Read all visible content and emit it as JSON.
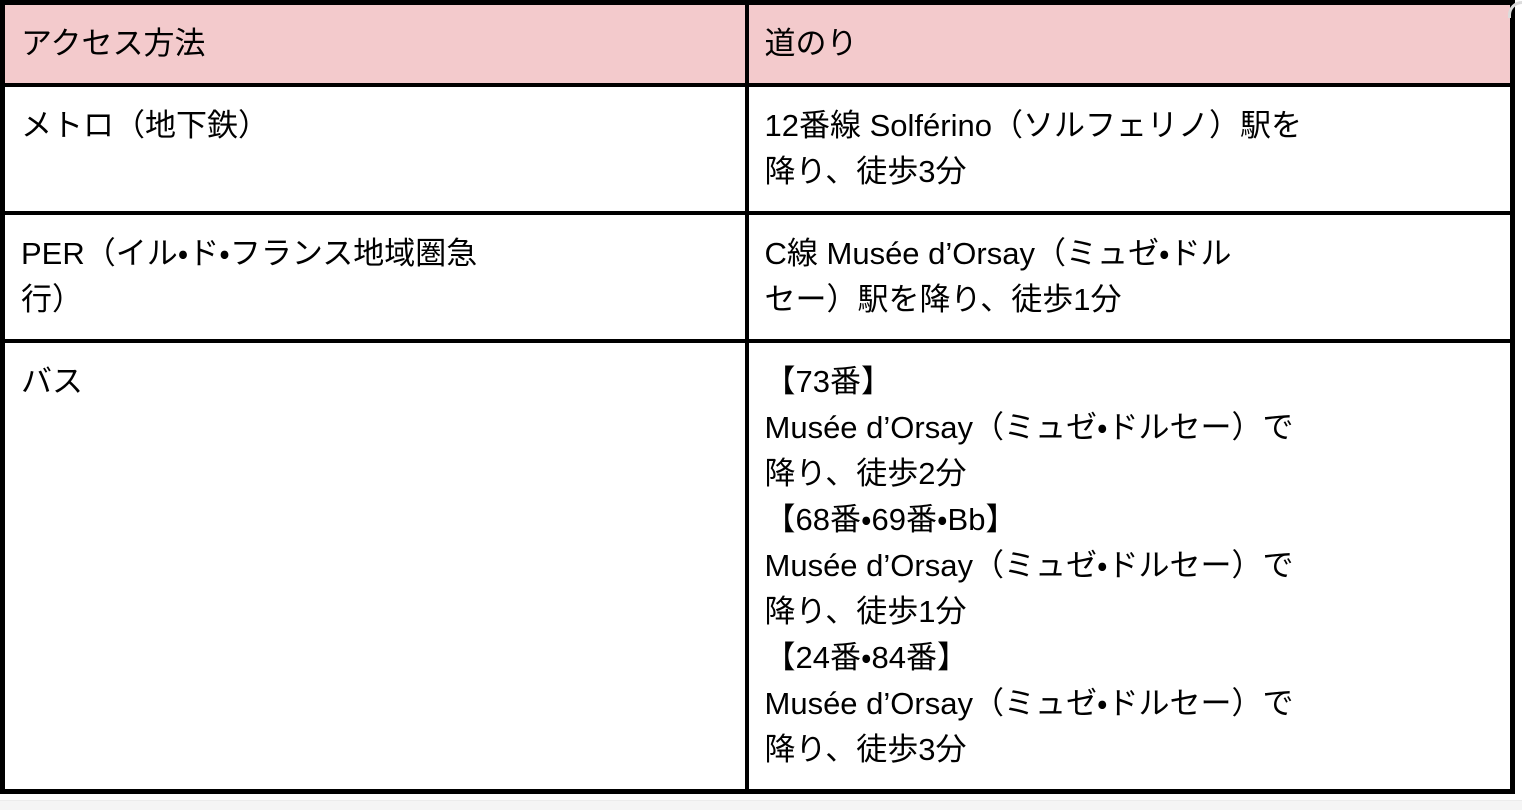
{
  "page": {
    "background_color": "#ffffff",
    "below_table_strip_color": "#f5f5f5",
    "corner_decoration_color": "#dcdcdc"
  },
  "table": {
    "style": {
      "header_background": "#f3cacc",
      "border_color": "#000000",
      "text_color": "#000000"
    },
    "columns": [
      {
        "label": "アクセス方法"
      },
      {
        "label": "道のり"
      }
    ],
    "rows": [
      {
        "method": "メトロ（地下鉄）",
        "route": "12番線 Solférino（ソルフェリノ）駅を\n降り、徒歩3分"
      },
      {
        "method": "PER（イル・ド・フランス地域圏急\n行）",
        "route": "C線 Musée d’Orsay（ミュゼ・ドル\nセー）駅を降り、徒歩1分"
      },
      {
        "method": "バス",
        "route": "【73番】\nMusée d’Orsay（ミュゼ・ドルセー）で\n降り、徒歩2分\n【68番・69番・Bb】\nMusée d’Orsay（ミュゼ・ドルセー）で\n降り、徒歩1分\n【24番・84番】\nMusée d’Orsay（ミュゼ・ドルセー）で\n降り、徒歩3分"
      }
    ]
  }
}
